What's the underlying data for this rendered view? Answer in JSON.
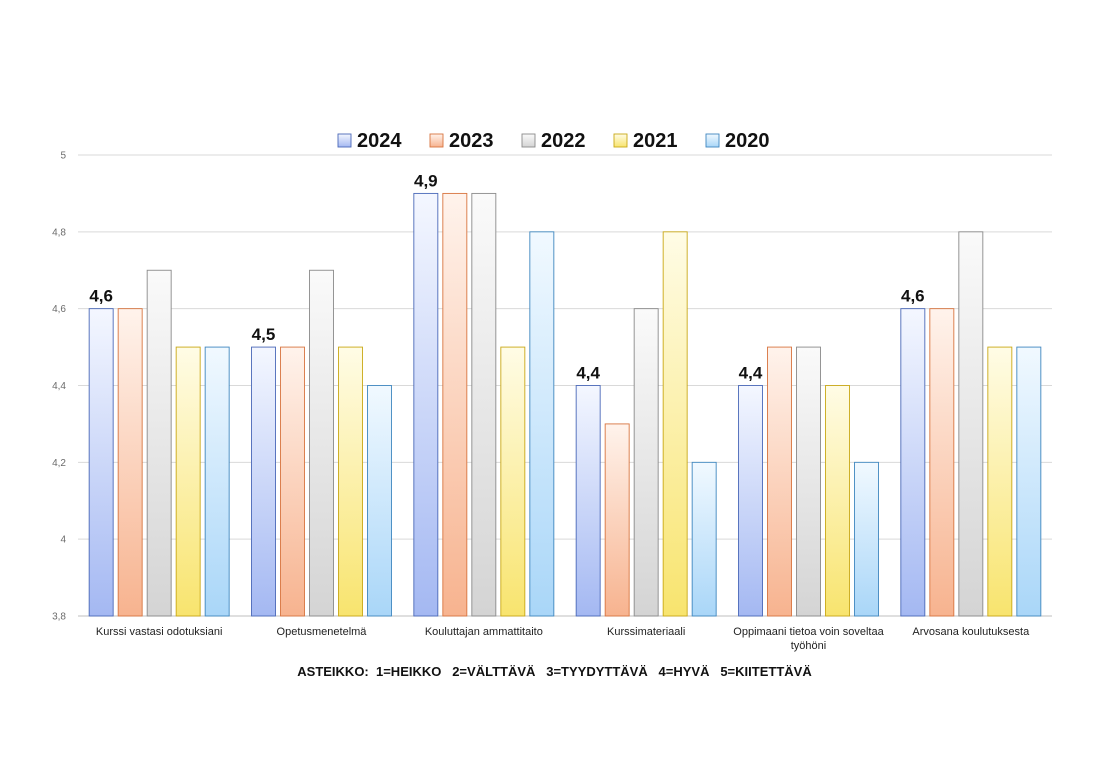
{
  "chart_data": {
    "type": "bar",
    "categories": [
      "Kurssi vastasi odotuksiani",
      "Opetusmenetelmä",
      "Kouluttajan ammattitaito",
      "Kurssimateriaali",
      "Oppimaani tietoa voin soveltaa työhöni",
      "Arvosana koulutuksesta"
    ],
    "category_label_lines": [
      [
        "Kurssi vastasi odotuksiani"
      ],
      [
        "Opetusmenetelmä"
      ],
      [
        "Kouluttajan ammattitaito"
      ],
      [
        "Kurssimateriaali"
      ],
      [
        "Oppimaani tietoa voin soveltaa",
        "työhöni"
      ],
      [
        "Arvosana koulutuksesta"
      ]
    ],
    "series": [
      {
        "name": "2024",
        "values": [
          4.6,
          4.5,
          4.9,
          4.4,
          4.4,
          4.6
        ],
        "color": "#a4b8f2",
        "light": "#f4f7ff",
        "stroke": "#4a68b8"
      },
      {
        "name": "2023",
        "values": [
          4.6,
          4.5,
          4.9,
          4.3,
          4.5,
          4.6
        ],
        "color": "#f7b38f",
        "light": "#fff3ec",
        "stroke": "#d8743f"
      },
      {
        "name": "2022",
        "values": [
          4.7,
          4.7,
          4.9,
          4.6,
          4.5,
          4.8
        ],
        "color": "#d4d4d4",
        "light": "#fafafa",
        "stroke": "#8a8a8a"
      },
      {
        "name": "2021",
        "values": [
          4.5,
          4.5,
          4.5,
          4.8,
          4.4,
          4.5
        ],
        "color": "#f8e46e",
        "light": "#fffce6",
        "stroke": "#c9a816"
      },
      {
        "name": "2020",
        "values": [
          4.5,
          4.4,
          4.8,
          4.2,
          4.2,
          4.5
        ],
        "color": "#a9d6f8",
        "light": "#f1f9ff",
        "stroke": "#3f87bf"
      }
    ],
    "data_labels": [
      "4,6",
      "4,5",
      "4,9",
      "4,4",
      "4,4",
      "4,6"
    ],
    "ylim": [
      3.8,
      5
    ],
    "yticks": [
      3.8,
      4,
      4.2,
      4.4,
      4.6,
      4.8,
      5
    ],
    "ytick_labels": [
      "3,8",
      "4",
      "4,2",
      "4,4",
      "4,6",
      "4,8",
      "5"
    ],
    "grid": true,
    "legend": "top-center",
    "title": "",
    "xlabel": "",
    "ylabel": ""
  },
  "footer": {
    "scale_note": "ASTEIKKO:  1=HEIKKO   2=VÄLTTÄVÄ   3=TYYDYTTÄVÄ   4=HYVÄ   5=KIITETTÄVÄ"
  }
}
